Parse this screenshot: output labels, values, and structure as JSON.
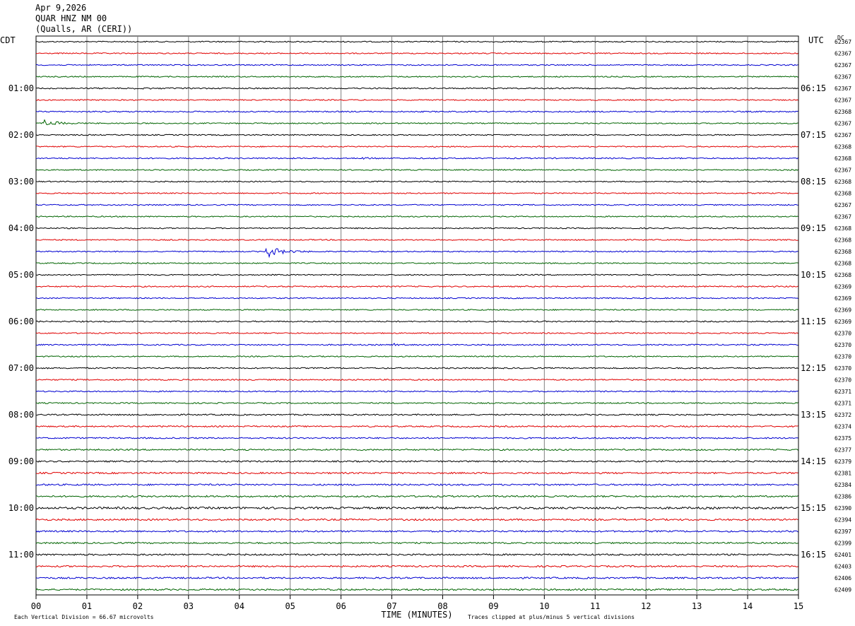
{
  "header": {
    "date": "Apr 9,2026",
    "station": "QUAR HNZ NM 00",
    "location": "(Qualls, AR (CERI))"
  },
  "chart_data": {
    "type": "line",
    "plot_kind": "helicorder",
    "title": "",
    "left_axis_label": "CDT",
    "right_axis_label": "UTC",
    "dc_label": "DC",
    "xlabel": "TIME (MINUTES)",
    "xlim": [
      0,
      15
    ],
    "x_ticks": [
      "00",
      "01",
      "02",
      "03",
      "04",
      "05",
      "06",
      "07",
      "08",
      "09",
      "10",
      "11",
      "12",
      "13",
      "14",
      "15"
    ],
    "trace_colors": [
      "#000000",
      "#e00000",
      "#0000d0",
      "#006400"
    ],
    "rows_per_label": 4,
    "left_time_labels": [
      "01:00",
      "02:00",
      "03:00",
      "04:00",
      "05:00",
      "06:00",
      "07:00",
      "08:00",
      "09:00",
      "10:00",
      "11:00"
    ],
    "right_time_labels": [
      "06:15",
      "07:15",
      "08:15",
      "09:15",
      "10:15",
      "11:15",
      "12:15",
      "13:15",
      "14:15",
      "15:15",
      "16:15"
    ],
    "dc_values": [
      "62367",
      "62367",
      "62367",
      "62367",
      "62367",
      "62367",
      "62368",
      "62367",
      "62367",
      "62368",
      "62368",
      "62367",
      "62368",
      "62368",
      "62367",
      "62367",
      "62368",
      "62368",
      "62368",
      "62368",
      "62368",
      "62369",
      "62369",
      "62369",
      "62369",
      "62370",
      "62370",
      "62370",
      "62370",
      "62370",
      "62371",
      "62371",
      "62372",
      "62374",
      "62375",
      "62377",
      "62379",
      "62381",
      "62384",
      "62386",
      "62390",
      "62394",
      "62397",
      "62399",
      "62401",
      "62403",
      "62406",
      "62409"
    ],
    "noise_levels": [
      1.0,
      1.0,
      1.0,
      1.0,
      1.1,
      1.0,
      1.1,
      1.0,
      1.0,
      1.0,
      1.1,
      1.0,
      1.0,
      1.0,
      1.0,
      1.0,
      1.0,
      1.0,
      1.0,
      1.0,
      1.0,
      1.1,
      1.0,
      1.0,
      1.1,
      1.0,
      1.1,
      1.0,
      1.1,
      1.1,
      1.1,
      1.1,
      1.2,
      1.2,
      1.2,
      1.3,
      1.3,
      1.4,
      1.4,
      1.4,
      1.8,
      1.5,
      1.4,
      1.3,
      1.4,
      1.4,
      1.4,
      1.4
    ],
    "events": [
      {
        "row": 4,
        "start_min": 1.9,
        "duration_min": 1.0,
        "amplitude_div": 0.25
      },
      {
        "row": 7,
        "start_min": 0.1,
        "duration_min": 0.8,
        "amplitude_div": 1.0
      },
      {
        "row": 9,
        "start_min": 9.8,
        "duration_min": 0.5,
        "amplitude_div": 0.2
      },
      {
        "row": 10,
        "start_min": 6.3,
        "duration_min": 0.6,
        "amplitude_div": 0.3
      },
      {
        "row": 18,
        "start_min": 3.5,
        "duration_min": 0.3,
        "amplitude_div": 0.25
      },
      {
        "row": 18,
        "start_min": 4.5,
        "duration_min": 0.9,
        "amplitude_div": 1.6
      },
      {
        "row": 26,
        "start_min": 7.0,
        "duration_min": 0.6,
        "amplitude_div": 0.3
      },
      {
        "row": 33,
        "start_min": 2.2,
        "duration_min": 0.4,
        "amplitude_div": 0.15
      },
      {
        "row": 39,
        "start_min": 4.6,
        "duration_min": 0.4,
        "amplitude_div": 0.2
      },
      {
        "row": 40,
        "start_min": 13.5,
        "duration_min": 0.5,
        "amplitude_div": 0.25
      }
    ],
    "footer_division": "Each Vertical Division =   66.67 microvolts",
    "footer_clip": "Traces clipped at plus/minus 5 vertical divisions"
  }
}
